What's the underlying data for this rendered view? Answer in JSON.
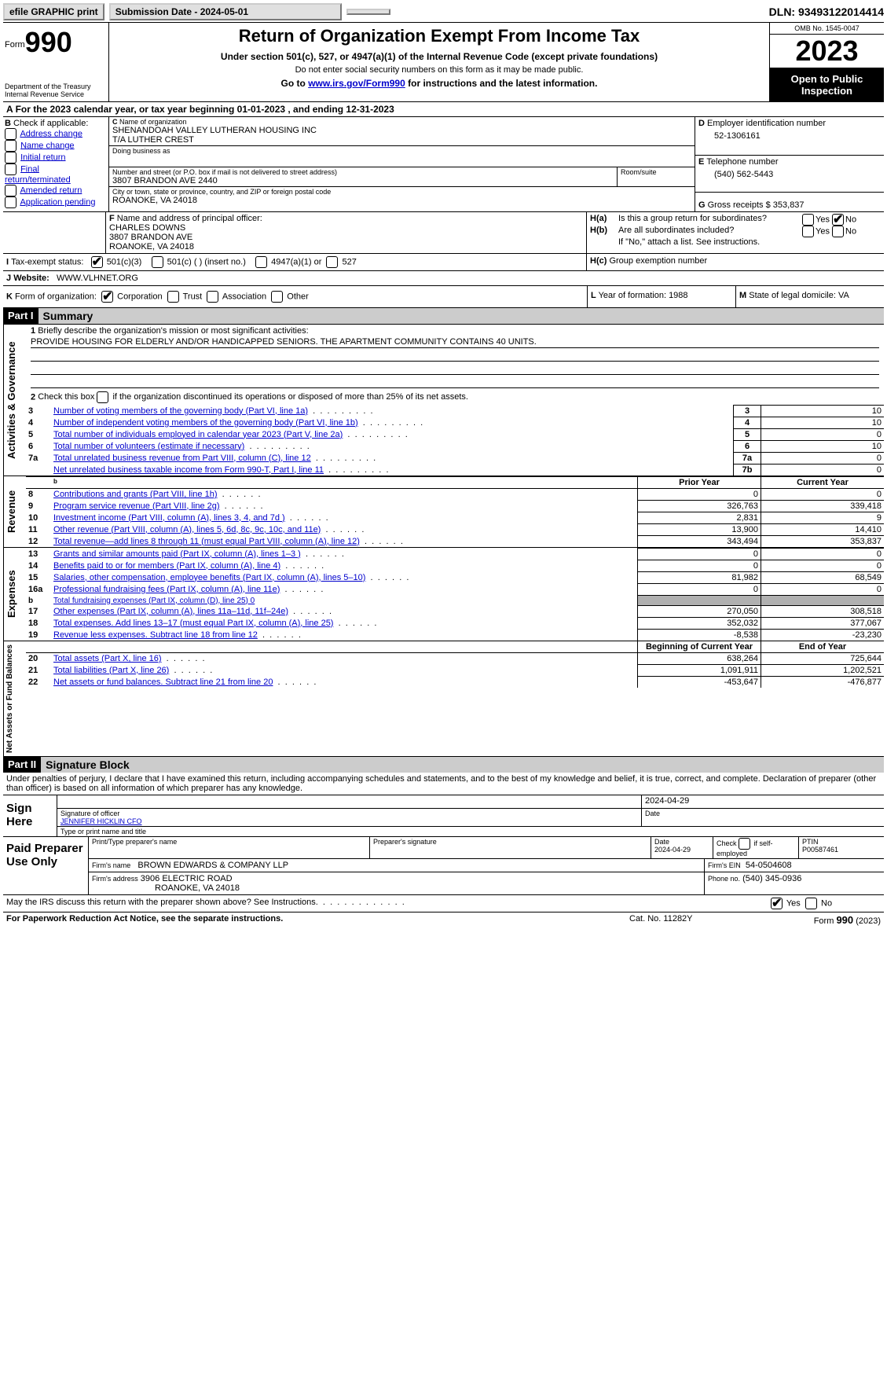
{
  "top_bar": {
    "efile": "efile GRAPHIC print",
    "submission_label": "Submission Date - 2024-05-01",
    "dln_label": "DLN: 93493122014414"
  },
  "header": {
    "form_word": "Form",
    "form_num": "990",
    "dept": "Department of the Treasury",
    "irs": "Internal Revenue Service",
    "title": "Return of Organization Exempt From Income Tax",
    "subtitle": "Under section 501(c), 527, or 4947(a)(1) of the Internal Revenue Code (except private foundations)",
    "ssn_note": "Do not enter social security numbers on this form as it may be made public.",
    "goto_pre": "Go to ",
    "goto_link": "www.irs.gov/Form990",
    "goto_post": " for instructions and the latest information.",
    "omb": "OMB No. 1545-0047",
    "year": "2023",
    "inspection": "Open to Public Inspection"
  },
  "section_a": {
    "line": "For the 2023 calendar year, or tax year beginning 01-01-2023    , and ending 12-31-2023"
  },
  "section_b": {
    "label": "Check if applicable:",
    "opts": [
      "Address change",
      "Name change",
      "Initial return",
      "Final return/terminated",
      "Amended return",
      "Application pending"
    ]
  },
  "section_c": {
    "name_label": "Name of organization",
    "name1": "SHENANDOAH VALLEY LUTHERAN HOUSING INC",
    "name2": "T/A LUTHER CREST",
    "dba_label": "Doing business as",
    "street_label": "Number and street (or P.O. box if mail is not delivered to street address)",
    "room_label": "Room/suite",
    "street": "3807 BRANDON AVE 2440",
    "city_label": "City or town, state or province, country, and ZIP or foreign postal code",
    "city": "ROANOKE, VA  24018"
  },
  "section_d": {
    "label": "Employer identification number",
    "val": "52-1306161"
  },
  "section_e": {
    "label": "Telephone number",
    "val": "(540) 562-5443"
  },
  "section_g": {
    "label": "Gross receipts $",
    "val": "353,837"
  },
  "section_f": {
    "label": "Name and address of principal officer:",
    "name": "CHARLES DOWNS",
    "addr1": "3807 BRANDON AVE",
    "addr2": "ROANOKE, VA  24018"
  },
  "section_h": {
    "a": "Is this a group return for subordinates?",
    "b": "Are all subordinates included?",
    "b_note": "If \"No,\" attach a list. See instructions.",
    "c": "Group exemption number"
  },
  "section_i": {
    "label": "Tax-exempt status:",
    "o1": "501(c)(3)",
    "o2": "501(c) (  ) (insert no.)",
    "o3": "4947(a)(1) or",
    "o4": "527"
  },
  "section_j": {
    "label": "Website:",
    "val": "WWW.VLHNET.ORG"
  },
  "section_k": {
    "label": "Form of organization:",
    "opts": [
      "Corporation",
      "Trust",
      "Association",
      "Other"
    ]
  },
  "section_l": {
    "label": "Year of formation:",
    "val": "1988"
  },
  "section_m": {
    "label": "State of legal domicile:",
    "val": "VA"
  },
  "part1": {
    "header": "Part I",
    "title": "Summary",
    "l1_label": "Briefly describe the organization's mission or most significant activities:",
    "l1_text": "PROVIDE HOUSING FOR ELDERLY AND/OR HANDICAPPED SENIORS. THE APARTMENT COMMUNITY CONTAINS 40 UNITS.",
    "l2": "Check this box      if the organization discontinued its operations or disposed of more than 25% of its net assets.",
    "vert_gov": "Activities & Governance",
    "vert_rev": "Revenue",
    "vert_exp": "Expenses",
    "vert_net": "Net Assets or Fund Balances",
    "rows_gov": [
      {
        "n": "3",
        "t": "Number of voting members of the governing body (Part VI, line 1a)",
        "k": "3",
        "v": "10"
      },
      {
        "n": "4",
        "t": "Number of independent voting members of the governing body (Part VI, line 1b)",
        "k": "4",
        "v": "10"
      },
      {
        "n": "5",
        "t": "Total number of individuals employed in calendar year 2023 (Part V, line 2a)",
        "k": "5",
        "v": "0"
      },
      {
        "n": "6",
        "t": "Total number of volunteers (estimate if necessary)",
        "k": "6",
        "v": "10"
      },
      {
        "n": "7a",
        "t": "Total unrelated business revenue from Part VIII, column (C), line 12",
        "k": "7a",
        "v": "0"
      },
      {
        "n": "",
        "t": "Net unrelated business taxable income from Form 990-T, Part I, line 11",
        "k": "7b",
        "v": "0"
      }
    ],
    "col_prior": "Prior Year",
    "col_curr": "Current Year",
    "rows_rev": [
      {
        "n": "8",
        "t": "Contributions and grants (Part VIII, line 1h)",
        "p": "0",
        "c": "0"
      },
      {
        "n": "9",
        "t": "Program service revenue (Part VIII, line 2g)",
        "p": "326,763",
        "c": "339,418"
      },
      {
        "n": "10",
        "t": "Investment income (Part VIII, column (A), lines 3, 4, and 7d )",
        "p": "2,831",
        "c": "9"
      },
      {
        "n": "11",
        "t": "Other revenue (Part VIII, column (A), lines 5, 6d, 8c, 9c, 10c, and 11e)",
        "p": "13,900",
        "c": "14,410"
      },
      {
        "n": "12",
        "t": "Total revenue—add lines 8 through 11 (must equal Part VIII, column (A), line 12)",
        "p": "343,494",
        "c": "353,837"
      }
    ],
    "rows_exp": [
      {
        "n": "13",
        "t": "Grants and similar amounts paid (Part IX, column (A), lines 1–3 )",
        "p": "0",
        "c": "0"
      },
      {
        "n": "14",
        "t": "Benefits paid to or for members (Part IX, column (A), line 4)",
        "p": "0",
        "c": "0"
      },
      {
        "n": "15",
        "t": "Salaries, other compensation, employee benefits (Part IX, column (A), lines 5–10)",
        "p": "81,982",
        "c": "68,549"
      },
      {
        "n": "16a",
        "t": "Professional fundraising fees (Part IX, column (A), line 11e)",
        "p": "0",
        "c": "0"
      },
      {
        "n": "b",
        "t": "Total fundraising expenses (Part IX, column (D), line 25) 0",
        "p": "",
        "c": "",
        "shade": true,
        "small": true
      },
      {
        "n": "17",
        "t": "Other expenses (Part IX, column (A), lines 11a–11d, 11f–24e)",
        "p": "270,050",
        "c": "308,518"
      },
      {
        "n": "18",
        "t": "Total expenses. Add lines 13–17 (must equal Part IX, column (A), line 25)",
        "p": "352,032",
        "c": "377,067"
      },
      {
        "n": "19",
        "t": "Revenue less expenses. Subtract line 18 from line 12",
        "p": "-8,538",
        "c": "-23,230"
      }
    ],
    "col_begin": "Beginning of Current Year",
    "col_end": "End of Year",
    "rows_net": [
      {
        "n": "20",
        "t": "Total assets (Part X, line 16)",
        "p": "638,264",
        "c": "725,644"
      },
      {
        "n": "21",
        "t": "Total liabilities (Part X, line 26)",
        "p": "1,091,911",
        "c": "1,202,521"
      },
      {
        "n": "22",
        "t": "Net assets or fund balances. Subtract line 21 from line 20",
        "p": "-453,647",
        "c": "-476,877"
      }
    ]
  },
  "part2": {
    "header": "Part II",
    "title": "Signature Block",
    "declaration": "Under penalties of perjury, I declare that I have examined this return, including accompanying schedules and statements, and to the best of my knowledge and belief, it is true, correct, and complete. Declaration of preparer (other than officer) is based on all information of which preparer has any knowledge.",
    "sign_here": "Sign Here",
    "sig_date": "2024-04-29",
    "sig_officer_label": "Signature of officer",
    "officer_name": "JENNIFER HICKLIN  CFO",
    "type_label": "Type or print name and title",
    "date_label": "Date",
    "paid": "Paid Preparer Use Only",
    "prep_name_label": "Print/Type preparer's name",
    "prep_sig_label": "Preparer's signature",
    "prep_date_label": "Date",
    "prep_date": "2024-04-29",
    "self_emp": "Check       if self-employed",
    "ptin_label": "PTIN",
    "ptin": "P00587461",
    "firm_name_label": "Firm's name",
    "firm_name": "BROWN EDWARDS & COMPANY LLP",
    "firm_ein_label": "Firm's EIN",
    "firm_ein": "54-0504608",
    "firm_addr_label": "Firm's address",
    "firm_addr1": "3906 ELECTRIC ROAD",
    "firm_addr2": "ROANOKE, VA  24018",
    "phone_label": "Phone no.",
    "phone": "(540) 345-0936",
    "discuss": "May the IRS discuss this return with the preparer shown above? See Instructions.",
    "yes": "Yes",
    "no": "No"
  },
  "footer": {
    "pra": "For Paperwork Reduction Act Notice, see the separate instructions.",
    "cat": "Cat. No. 11282Y",
    "form": "Form 990 (2023)"
  }
}
